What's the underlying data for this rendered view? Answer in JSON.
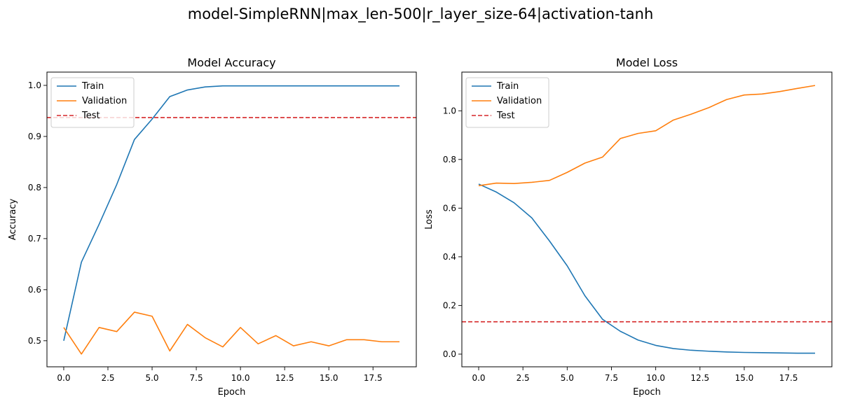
{
  "figure": {
    "suptitle": "model-SimpleRNN|max_len-500|r_layer_size-64|activation-tanh"
  },
  "colors": {
    "train": "#1f77b4",
    "validation": "#ff7f0e",
    "test": "#d62728"
  },
  "chart_data": [
    {
      "type": "line",
      "title": "Model Accuracy",
      "xlabel": "Epoch",
      "ylabel": "Accuracy",
      "xlim": [
        -0.95,
        19.95
      ],
      "ylim": [
        0.449,
        1.026
      ],
      "xticks": [
        0.0,
        2.5,
        5.0,
        7.5,
        10.0,
        12.5,
        15.0,
        17.5
      ],
      "xtick_labels": [
        "0.0",
        "2.5",
        "5.0",
        "7.5",
        "10.0",
        "12.5",
        "15.0",
        "17.5"
      ],
      "yticks": [
        0.5,
        0.6,
        0.7,
        0.8,
        0.9,
        1.0
      ],
      "ytick_labels": [
        "0.5",
        "0.6",
        "0.7",
        "0.8",
        "0.9",
        "1.0"
      ],
      "legend_position": "upper left",
      "grid": false,
      "x": [
        0,
        1,
        2,
        3,
        4,
        5,
        6,
        7,
        8,
        9,
        10,
        11,
        12,
        13,
        14,
        15,
        16,
        17,
        18,
        19
      ],
      "series": [
        {
          "name": "Train",
          "style": "solid",
          "color_key": "train",
          "values": [
            0.5,
            0.654,
            0.728,
            0.806,
            0.894,
            0.934,
            0.978,
            0.991,
            0.997,
            0.999,
            0.999,
            0.999,
            0.999,
            0.999,
            0.999,
            0.999,
            0.999,
            0.999,
            0.999,
            0.999
          ]
        },
        {
          "name": "Validation",
          "style": "solid",
          "color_key": "validation",
          "values": [
            0.526,
            0.474,
            0.526,
            0.518,
            0.556,
            0.548,
            0.48,
            0.532,
            0.506,
            0.488,
            0.526,
            0.494,
            0.51,
            0.49,
            0.498,
            0.49,
            0.502,
            0.502,
            0.498,
            0.498
          ]
        }
      ],
      "hlines": [
        {
          "name": "Test",
          "style": "dashed",
          "color_key": "test",
          "y": 0.937
        }
      ]
    },
    {
      "type": "line",
      "title": "Model Loss",
      "xlabel": "Epoch",
      "ylabel": "Loss",
      "xlim": [
        -0.95,
        19.95
      ],
      "ylim": [
        -0.052,
        1.159
      ],
      "xticks": [
        0.0,
        2.5,
        5.0,
        7.5,
        10.0,
        12.5,
        15.0,
        17.5
      ],
      "xtick_labels": [
        "0.0",
        "2.5",
        "5.0",
        "7.5",
        "10.0",
        "12.5",
        "15.0",
        "17.5"
      ],
      "yticks": [
        0.0,
        0.2,
        0.4,
        0.6,
        0.8,
        1.0
      ],
      "ytick_labels": [
        "0.0",
        "0.2",
        "0.4",
        "0.6",
        "0.8",
        "1.0"
      ],
      "legend_position": "upper left",
      "grid": false,
      "x": [
        0,
        1,
        2,
        3,
        4,
        5,
        6,
        7,
        8,
        9,
        10,
        11,
        12,
        13,
        14,
        15,
        16,
        17,
        18,
        19
      ],
      "series": [
        {
          "name": "Train",
          "style": "solid",
          "color_key": "train",
          "values": [
            0.699,
            0.666,
            0.622,
            0.56,
            0.465,
            0.363,
            0.24,
            0.143,
            0.094,
            0.058,
            0.036,
            0.023,
            0.016,
            0.012,
            0.009,
            0.007,
            0.006,
            0.005,
            0.004,
            0.004
          ]
        },
        {
          "name": "Validation",
          "style": "solid",
          "color_key": "validation",
          "values": [
            0.692,
            0.703,
            0.701,
            0.706,
            0.714,
            0.747,
            0.785,
            0.81,
            0.886,
            0.907,
            0.918,
            0.962,
            0.986,
            1.013,
            1.046,
            1.065,
            1.069,
            1.079,
            1.092,
            1.104
          ]
        }
      ],
      "hlines": [
        {
          "name": "Test",
          "style": "dashed",
          "color_key": "test",
          "y": 0.133
        }
      ]
    }
  ]
}
